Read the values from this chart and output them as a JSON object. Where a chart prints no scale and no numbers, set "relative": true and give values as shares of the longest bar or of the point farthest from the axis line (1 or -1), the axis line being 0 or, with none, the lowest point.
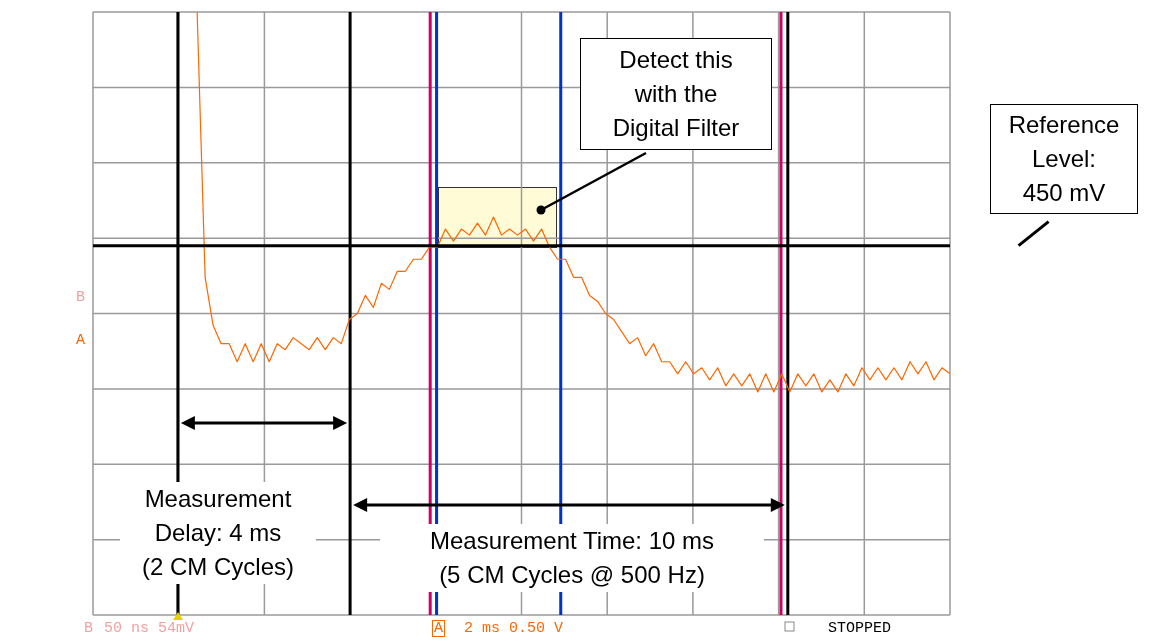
{
  "chart_data": {
    "type": "line",
    "relative": true,
    "categories": [
      null,
      null,
      null,
      null,
      null,
      null,
      null,
      null,
      null,
      null,
      null,
      null,
      null,
      null,
      null,
      null,
      null,
      null,
      null,
      null,
      null,
      null,
      null,
      null,
      null,
      null,
      null,
      null,
      null,
      null,
      null,
      null,
      null,
      null,
      null,
      null,
      null,
      null,
      null,
      null,
      null,
      null,
      null,
      null,
      null,
      null,
      null,
      null,
      null,
      null,
      null,
      null,
      null,
      null,
      null,
      null,
      null,
      null,
      null,
      null,
      null,
      null,
      null,
      null,
      null,
      null,
      null,
      null,
      null,
      null,
      null,
      null,
      null,
      null,
      null,
      null,
      null,
      null,
      null,
      null,
      null,
      null,
      null,
      null,
      null,
      null,
      null,
      null,
      null,
      null,
      null,
      null,
      null,
      null,
      null
    ],
    "series": [
      {
        "color": "#ff6600",
        "values": [
          1.0,
          0.56,
          0.48,
          0.45,
          0.45,
          0.42,
          0.45,
          0.42,
          0.45,
          0.42,
          0.45,
          0.44,
          0.46,
          0.45,
          0.44,
          0.46,
          0.44,
          0.46,
          0.45,
          0.49,
          0.5,
          0.53,
          0.51,
          0.55,
          0.54,
          0.57,
          0.57,
          0.59,
          0.59,
          0.61,
          0.61,
          0.64,
          0.62,
          0.64,
          0.63,
          0.65,
          0.63,
          0.66,
          0.63,
          0.64,
          0.63,
          0.64,
          0.62,
          0.64,
          0.61,
          0.59,
          0.59,
          0.56,
          0.56,
          0.53,
          0.52,
          0.5,
          0.49,
          0.47,
          0.45,
          0.46,
          0.43,
          0.45,
          0.42,
          0.42,
          0.4,
          0.42,
          0.4,
          0.41,
          0.39,
          0.41,
          0.38,
          0.4,
          0.38,
          0.4,
          0.37,
          0.4,
          0.37,
          0.4,
          0.37,
          0.4,
          0.38,
          0.4,
          0.37,
          0.39,
          0.37,
          0.4,
          0.38,
          0.41,
          0.39,
          0.41,
          0.39,
          0.41,
          0.39,
          0.42,
          0.4,
          0.42,
          0.39,
          0.41,
          0.4
        ]
      }
    ],
    "grid": true,
    "marker": "none",
    "line_style": "solid",
    "annotations": [
      "Detect this\nwith the\nDigital Filter",
      "Measurement\nDelay: 4 ms\n(2 CM Cycles)",
      "Measurement Time: 10 ms\n(5 CM Cycles @ 500 Hz)",
      "B",
      "50 ns 54mV",
      "A",
      "2 ms 0.50 V",
      "STOPPED",
      "B",
      "A",
      "Reference\nLevel:\n450 mV"
    ]
  }
}
